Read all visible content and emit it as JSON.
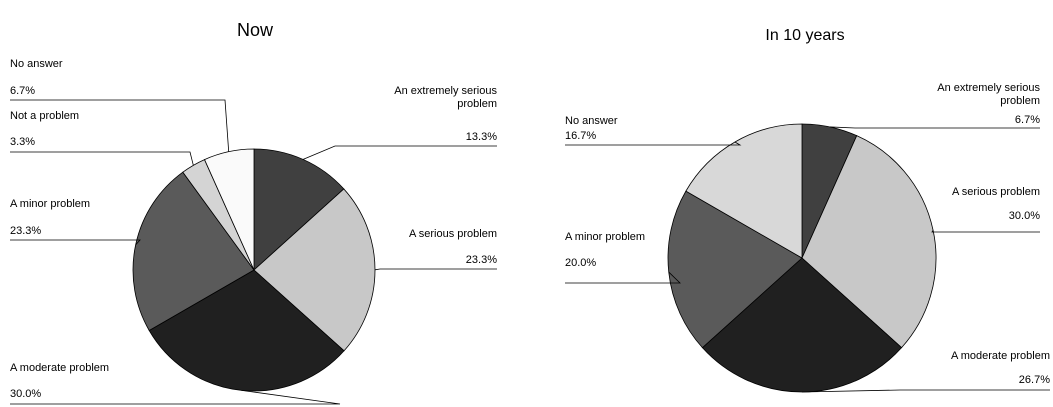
{
  "chart_data": [
    {
      "type": "pie",
      "title": "Now",
      "categories": [
        "An extremely serious problem",
        "A serious problem",
        "A moderate problem",
        "A minor problem",
        "Not a problem",
        "No answer"
      ],
      "values": [
        13.3,
        23.3,
        30.0,
        23.3,
        3.3,
        6.7
      ],
      "value_labels": [
        "13.3%",
        "23.3%",
        "30.0%",
        "23.3%",
        "3.3%",
        "6.7%"
      ],
      "colors": [
        "#404040",
        "#c8c8c8",
        "#202020",
        "#5a5a5a",
        "#d4d4d4",
        "#fafafa"
      ]
    },
    {
      "type": "pie",
      "title": "In 10 years",
      "categories": [
        "An extremely serious problem",
        "A serious problem",
        "A moderate problem",
        "A minor problem",
        "No answer"
      ],
      "values": [
        6.7,
        30.0,
        26.7,
        20.0,
        16.7
      ],
      "value_labels": [
        "6.7%",
        "30.0%",
        "26.7%",
        "20.0%",
        "16.7%"
      ],
      "colors": [
        "#404040",
        "#c8c8c8",
        "#202020",
        "#5a5a5a",
        "#d8d8d8"
      ]
    }
  ]
}
